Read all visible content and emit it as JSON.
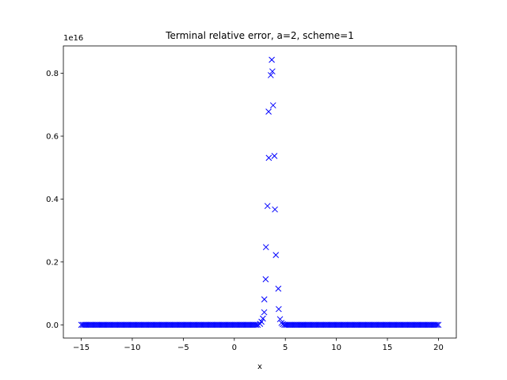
{
  "chart_data": {
    "type": "scatter",
    "title": "Terminal relative error, a=2, scheme=1",
    "xlabel": "x",
    "ylabel": "",
    "y_offset_label": "1e16",
    "xlim": [
      -16.75,
      21.75
    ],
    "ylim": [
      -0.042,
      0.887
    ],
    "x_ticks": [
      -15,
      -10,
      -5,
      0,
      5,
      10,
      15,
      20
    ],
    "x_tick_labels": [
      "−15",
      "−10",
      "−5",
      "0",
      "5",
      "10",
      "15",
      "20"
    ],
    "y_ticks": [
      0.0,
      0.2,
      0.4,
      0.6,
      0.8
    ],
    "y_tick_labels": [
      "0.0",
      "0.2",
      "0.4",
      "0.6",
      "0.8"
    ],
    "grid": false,
    "marker": "x",
    "color": "#0000ff",
    "series": [
      {
        "name": "",
        "x_start": -15,
        "x_end": 20,
        "n_points": 256,
        "peak_points": [
          {
            "x": 2.52,
            "y": 0.003
          },
          {
            "x": 2.66,
            "y": 0.01
          },
          {
            "x": 2.8,
            "y": 0.02
          },
          {
            "x": 2.93,
            "y": 0.04
          },
          {
            "x": 2.94,
            "y": 0.081
          },
          {
            "x": 3.07,
            "y": 0.145
          },
          {
            "x": 3.1,
            "y": 0.247
          },
          {
            "x": 3.25,
            "y": 0.378
          },
          {
            "x": 3.38,
            "y": 0.531
          },
          {
            "x": 3.36,
            "y": 0.678
          },
          {
            "x": 3.57,
            "y": 0.794
          },
          {
            "x": 3.67,
            "y": 0.843
          },
          {
            "x": 3.73,
            "y": 0.806
          },
          {
            "x": 3.8,
            "y": 0.698
          },
          {
            "x": 3.93,
            "y": 0.537
          },
          {
            "x": 3.98,
            "y": 0.367
          },
          {
            "x": 4.07,
            "y": 0.222
          },
          {
            "x": 4.31,
            "y": 0.115
          },
          {
            "x": 4.35,
            "y": 0.05
          },
          {
            "x": 4.48,
            "y": 0.018
          },
          {
            "x": 4.62,
            "y": 0.006
          },
          {
            "x": 4.75,
            "y": 0.002
          }
        ]
      }
    ]
  }
}
